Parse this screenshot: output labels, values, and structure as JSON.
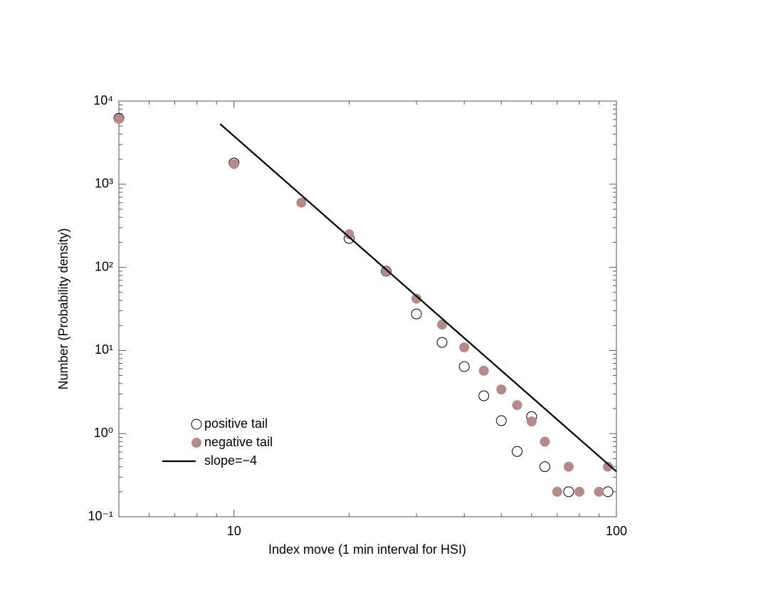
{
  "chart_data": {
    "type": "scatter",
    "xlabel": "Index move (1 min interval for HSI)",
    "ylabel": "Number (Probability density)",
    "xscale": "log",
    "yscale": "log",
    "xlim": [
      5,
      100
    ],
    "ylim": [
      0.1,
      10000
    ],
    "xticks": [
      10,
      100
    ],
    "xminorticks": [
      6,
      7,
      8,
      9,
      20,
      30,
      40,
      50,
      60,
      70,
      80,
      90
    ],
    "yticks": [
      {
        "value": 0.1,
        "label": "10⁻¹"
      },
      {
        "value": 1,
        "label": "10⁰"
      },
      {
        "value": 10,
        "label": "10¹"
      },
      {
        "value": 100,
        "label": "10²"
      },
      {
        "value": 1000,
        "label": "10³"
      },
      {
        "value": 10000,
        "label": "10⁴"
      }
    ],
    "yminorticks": [
      0.2,
      0.3,
      0.4,
      0.5,
      0.6,
      0.7,
      0.8,
      0.9,
      2,
      3,
      4,
      5,
      6,
      7,
      8,
      9,
      20,
      30,
      40,
      50,
      60,
      70,
      80,
      90,
      200,
      300,
      400,
      500,
      600,
      700,
      800,
      900,
      2000,
      3000,
      4000,
      5000,
      6000,
      7000,
      8000,
      9000
    ],
    "legend": "lower left",
    "series": [
      {
        "name": "positive tail",
        "marker": "open",
        "color": "#000000",
        "x": [
          5,
          10,
          20,
          25,
          30,
          35,
          40,
          45,
          50,
          55,
          60,
          65,
          75,
          95
        ],
        "values": [
          6200,
          1800,
          223,
          90,
          27.5,
          12.5,
          6.4,
          2.85,
          1.43,
          0.61,
          1.6,
          0.4,
          0.2,
          0.2
        ]
      },
      {
        "name": "negative tail",
        "marker": "filled",
        "color": "#b68a8a",
        "x": [
          5,
          10,
          15,
          20,
          25,
          30,
          35,
          40,
          45,
          50,
          55,
          60,
          65,
          70,
          75,
          80,
          90,
          95
        ],
        "values": [
          6100,
          1750,
          600,
          250,
          90,
          42,
          20.5,
          10.9,
          5.7,
          3.4,
          2.2,
          1.4,
          0.8,
          0.2,
          0.4,
          0.2,
          0.2,
          0.4
        ]
      },
      {
        "name": "slope=−4",
        "marker": "line",
        "color": "#000000",
        "x": [
          9.2,
          100
        ],
        "values": [
          5300,
          0.35
        ]
      }
    ]
  }
}
